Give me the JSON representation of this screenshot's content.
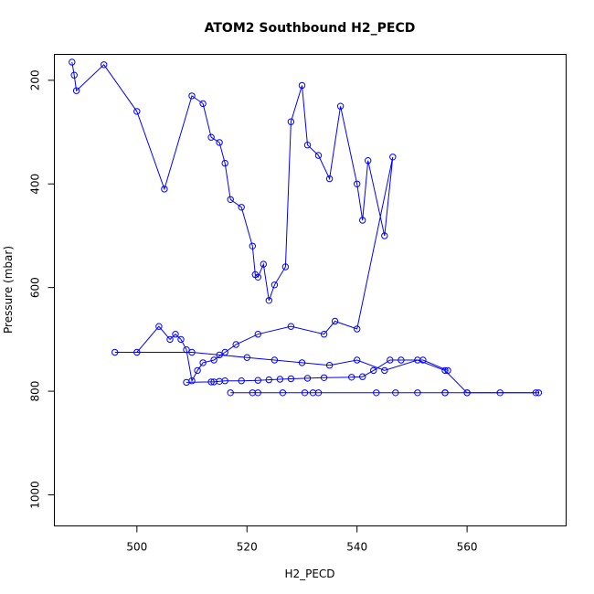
{
  "chart_data": {
    "type": "scatter",
    "title": "ATOM2 Southbound H2_PECD",
    "xlabel": "H2_PECD",
    "ylabel": "Pressure (mbar)",
    "xlim": [
      485,
      578
    ],
    "ylim": [
      1060,
      150
    ],
    "y_reversed": true,
    "x_ticks": [
      500,
      520,
      540,
      560
    ],
    "y_ticks": [
      200,
      400,
      600,
      800,
      1000
    ],
    "grid": false,
    "legend": "none",
    "line_color": "#0000ff",
    "points_with_lines": true,
    "series": [
      {
        "x": [
          488.2,
          488.6,
          489.0,
          494.0,
          500.0,
          505.0,
          510.0,
          512.0,
          513.5,
          515.0,
          516.0,
          517.0,
          519.0,
          521.0,
          521.5,
          522.0,
          523.0,
          524.0,
          525.0,
          527.0,
          528.0,
          530.0,
          531.0,
          533.0,
          535.0,
          537.0,
          540.0,
          541.0,
          542.0,
          545.0,
          546.5,
          540.0,
          536.0,
          534.0,
          528.0,
          522.0,
          518.0,
          516.0,
          514.0,
          512.0,
          511.0,
          510.0,
          509.0,
          508.0,
          507.0,
          506.0,
          504.0,
          500.0,
          496.0,
          510.0,
          515.0,
          520.0,
          525.0,
          530.0,
          535.0,
          540.0,
          545.0,
          551.0,
          556.0,
          560.0,
          566.0,
          573.0
        ],
        "y": [
          165,
          190,
          220,
          170,
          260,
          410,
          230,
          245,
          310,
          320,
          360,
          430,
          445,
          520,
          575,
          580,
          555,
          625,
          595,
          560,
          280,
          210,
          325,
          345,
          390,
          250,
          400,
          470,
          355,
          500,
          348,
          680,
          665,
          690,
          675,
          690,
          710,
          725,
          740,
          745,
          760,
          780,
          720,
          700,
          690,
          700,
          675,
          725,
          725,
          725,
          730,
          735,
          740,
          745,
          750,
          740,
          760,
          740,
          760,
          803,
          803,
          803
        ]
      },
      {
        "x": [
          517.0,
          521.0,
          522.0,
          526.5,
          530.5,
          532.0,
          533.0,
          543.5,
          547.0,
          551.0,
          556.0,
          556.0,
          560.0,
          572.5
        ],
        "y": [
          803,
          803,
          803,
          803,
          803,
          803,
          803,
          803,
          803,
          803,
          803,
          803,
          803,
          803
        ]
      },
      {
        "x": [
          509.0,
          513.5,
          514.0,
          515.0,
          516.0,
          519.0,
          522.0,
          524.0,
          526.0,
          528.0,
          531.0,
          534.0,
          539.0,
          541.0,
          543.0,
          546.0,
          548.0,
          552.0,
          556.5
        ],
        "y": [
          783,
          782,
          782,
          781,
          780,
          780,
          779,
          778,
          777,
          776,
          775,
          774,
          773,
          772,
          760,
          740,
          740,
          740,
          760
        ]
      }
    ]
  }
}
